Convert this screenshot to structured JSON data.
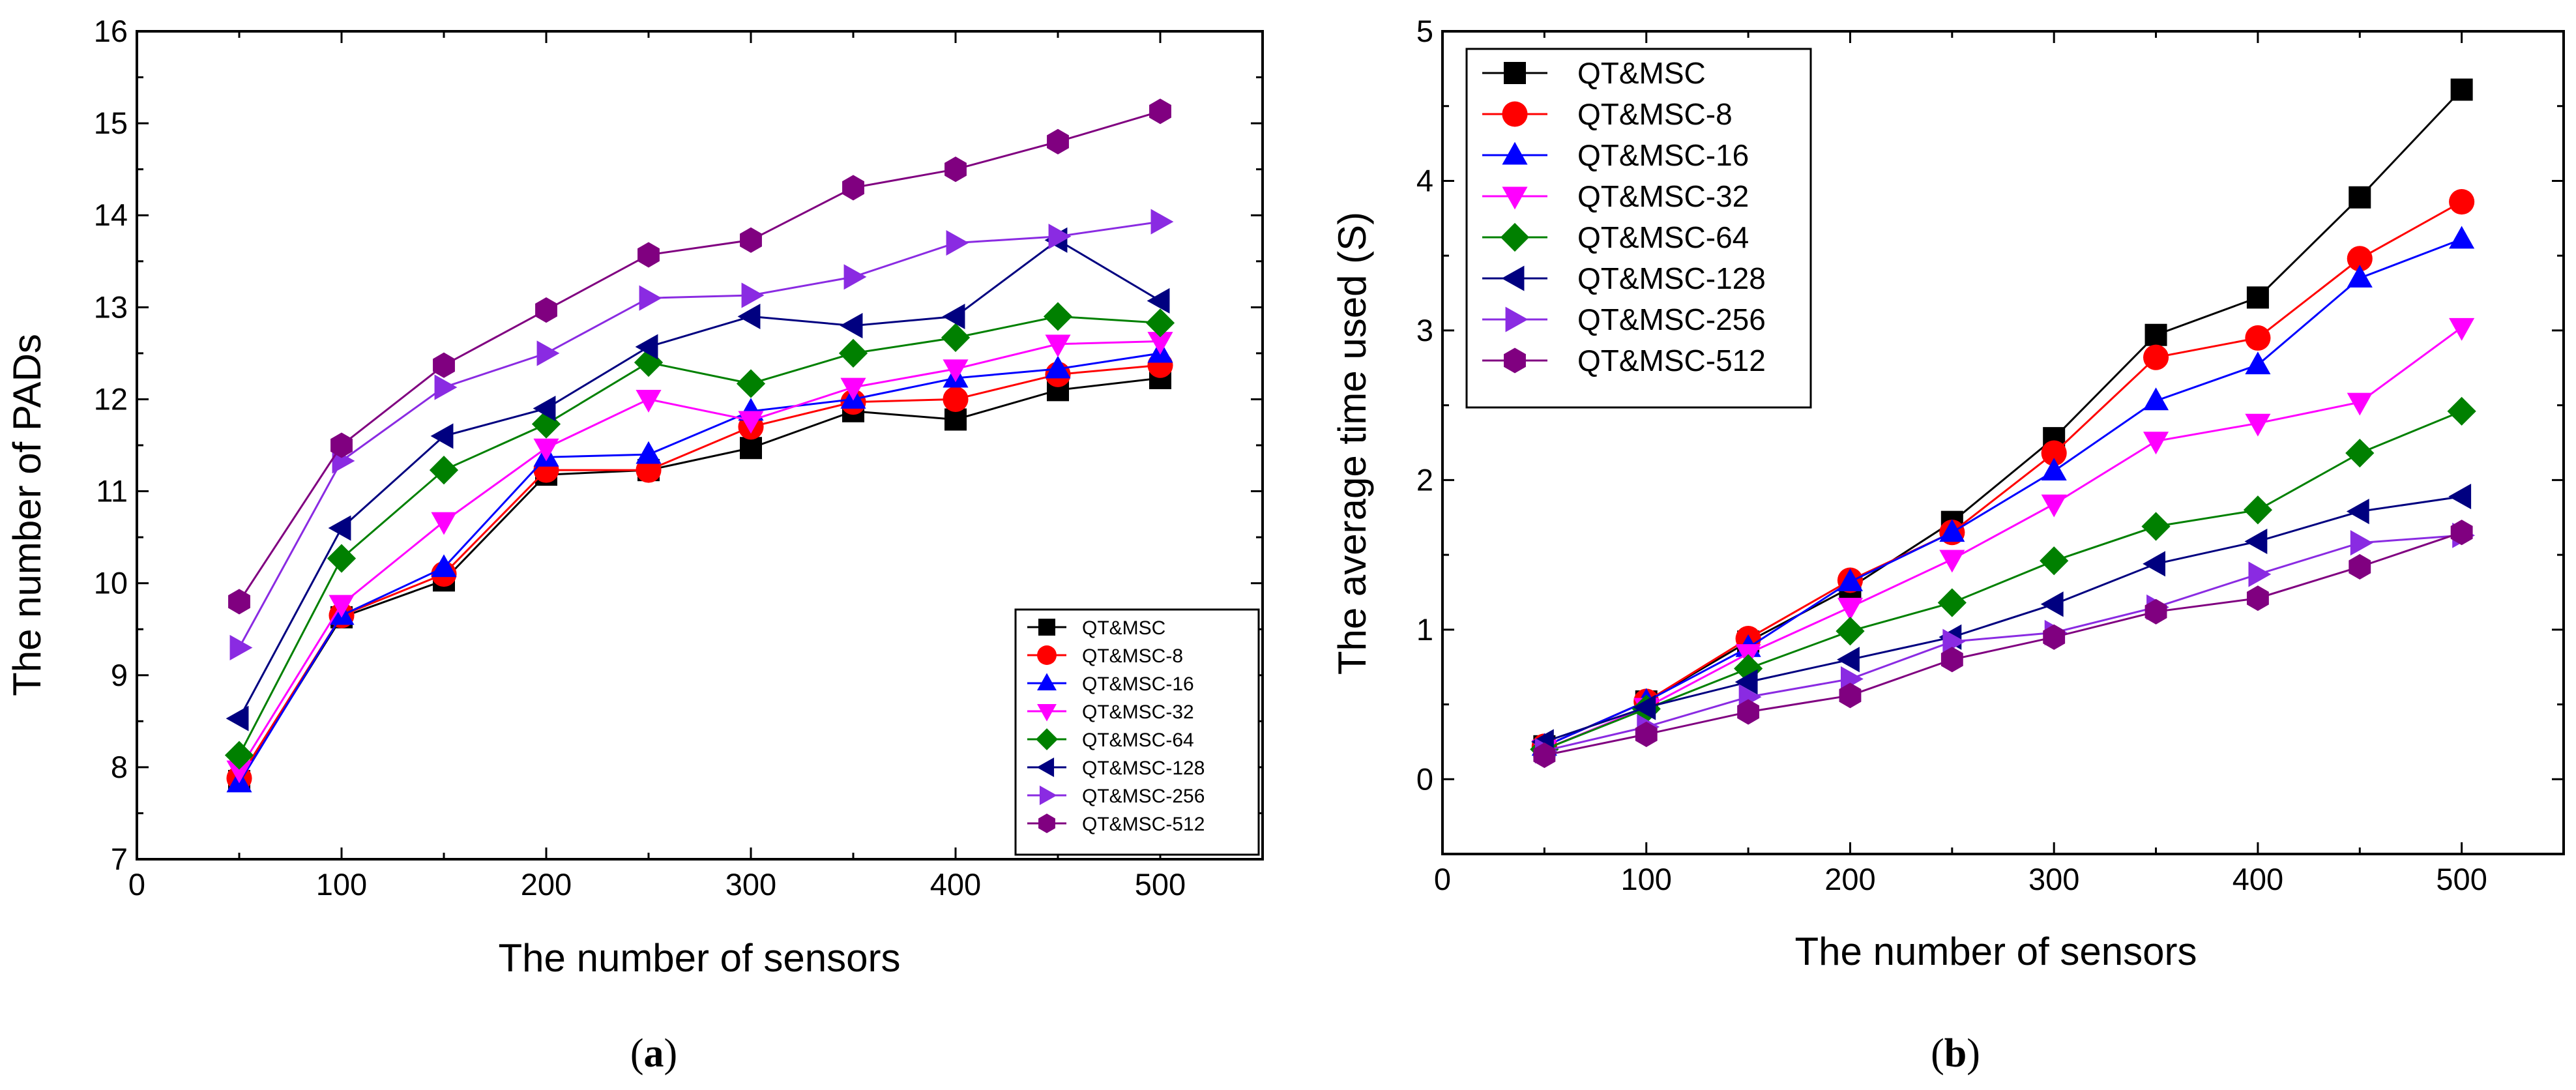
{
  "chart_data": [
    {
      "type": "line",
      "panel": "a",
      "caption": {
        "open": "(",
        "letter": "a",
        "close": ")"
      },
      "title": "",
      "xlabel": "The number of sensors",
      "ylabel": "The number of PADs",
      "xlim": [
        0,
        550
      ],
      "ylim": [
        7,
        16
      ],
      "xticks": [
        0,
        100,
        200,
        300,
        400,
        500
      ],
      "yticks": [
        7,
        8,
        9,
        10,
        11,
        12,
        13,
        14,
        15,
        16
      ],
      "legend_position": "bottom-right",
      "x": [
        50,
        100,
        150,
        200,
        250,
        300,
        350,
        400,
        450,
        500
      ],
      "series": [
        {
          "name": "QT&MSC",
          "color": "#000000",
          "marker": "square",
          "values": [
            7.85,
            9.63,
            10.03,
            11.18,
            11.23,
            11.47,
            11.87,
            11.78,
            12.1,
            12.23
          ]
        },
        {
          "name": "QT&MSC-8",
          "color": "#ff0000",
          "marker": "circle",
          "values": [
            7.88,
            9.65,
            10.1,
            11.23,
            11.23,
            11.7,
            11.97,
            12.0,
            12.27,
            12.37
          ]
        },
        {
          "name": "QT&MSC-16",
          "color": "#0000ff",
          "marker": "triangle-up",
          "values": [
            7.83,
            9.65,
            10.17,
            11.37,
            11.4,
            11.87,
            12.0,
            12.23,
            12.33,
            12.5
          ]
        },
        {
          "name": "QT&MSC-32",
          "color": "#ff00ff",
          "marker": "triangle-down",
          "values": [
            7.97,
            9.77,
            10.67,
            11.47,
            12.0,
            11.77,
            12.13,
            12.33,
            12.6,
            12.63
          ]
        },
        {
          "name": "QT&MSC-64",
          "color": "#008000",
          "marker": "diamond",
          "values": [
            8.13,
            10.27,
            11.23,
            11.73,
            12.4,
            12.17,
            12.5,
            12.67,
            12.9,
            12.83
          ]
        },
        {
          "name": "QT&MSC-128",
          "color": "#000080",
          "marker": "triangle-left",
          "values": [
            8.53,
            10.6,
            11.6,
            11.9,
            12.57,
            12.9,
            12.8,
            12.9,
            13.73,
            13.07
          ]
        },
        {
          "name": "QT&MSC-256",
          "color": "#8a2be2",
          "marker": "triangle-right",
          "values": [
            9.3,
            11.33,
            12.13,
            12.5,
            13.1,
            13.13,
            13.33,
            13.7,
            13.77,
            13.93
          ]
        },
        {
          "name": "QT&MSC-512",
          "color": "#800080",
          "marker": "hexagon",
          "values": [
            9.8,
            11.5,
            12.37,
            12.97,
            13.57,
            13.73,
            14.3,
            14.5,
            14.8,
            15.13
          ]
        }
      ]
    },
    {
      "type": "line",
      "panel": "b",
      "caption": {
        "open": "(",
        "letter": "b",
        "close": ")"
      },
      "title": "",
      "xlabel": "The number of sensors",
      "ylabel": "The average time used (S)",
      "xlim": [
        0,
        550
      ],
      "ylim": [
        -0.5,
        5
      ],
      "xticks": [
        0,
        100,
        200,
        300,
        400,
        500
      ],
      "yticks": [
        0,
        1,
        2,
        3,
        4,
        5
      ],
      "legend_position": "top-left",
      "x": [
        50,
        100,
        150,
        200,
        250,
        300,
        350,
        400,
        450,
        500
      ],
      "series": [
        {
          "name": "QT&MSC",
          "color": "#000000",
          "marker": "square",
          "values": [
            0.22,
            0.52,
            0.92,
            1.28,
            1.72,
            2.28,
            2.97,
            3.22,
            3.89,
            4.61
          ]
        },
        {
          "name": "QT&MSC-8",
          "color": "#ff0000",
          "marker": "circle",
          "values": [
            0.22,
            0.52,
            0.94,
            1.33,
            1.65,
            2.18,
            2.82,
            2.95,
            3.48,
            3.86
          ]
        },
        {
          "name": "QT&MSC-16",
          "color": "#0000ff",
          "marker": "triangle-up",
          "values": [
            0.22,
            0.52,
            0.88,
            1.32,
            1.65,
            2.06,
            2.53,
            2.77,
            3.35,
            3.61
          ]
        },
        {
          "name": "QT&MSC-32",
          "color": "#ff00ff",
          "marker": "triangle-down",
          "values": [
            0.2,
            0.48,
            0.84,
            1.15,
            1.47,
            1.84,
            2.26,
            2.38,
            2.52,
            3.02
          ]
        },
        {
          "name": "QT&MSC-64",
          "color": "#008000",
          "marker": "diamond",
          "values": [
            0.2,
            0.47,
            0.74,
            0.99,
            1.18,
            1.46,
            1.69,
            1.8,
            2.18,
            2.46
          ]
        },
        {
          "name": "QT&MSC-128",
          "color": "#000080",
          "marker": "triangle-left",
          "values": [
            0.25,
            0.48,
            0.65,
            0.8,
            0.95,
            1.17,
            1.44,
            1.59,
            1.79,
            1.89
          ]
        },
        {
          "name": "QT&MSC-256",
          "color": "#8a2be2",
          "marker": "triangle-right",
          "values": [
            0.19,
            0.35,
            0.55,
            0.67,
            0.92,
            0.98,
            1.15,
            1.37,
            1.58,
            1.63
          ]
        },
        {
          "name": "QT&MSC-512",
          "color": "#800080",
          "marker": "hexagon",
          "values": [
            0.16,
            0.3,
            0.45,
            0.56,
            0.8,
            0.95,
            1.12,
            1.21,
            1.42,
            1.65
          ]
        }
      ]
    }
  ]
}
